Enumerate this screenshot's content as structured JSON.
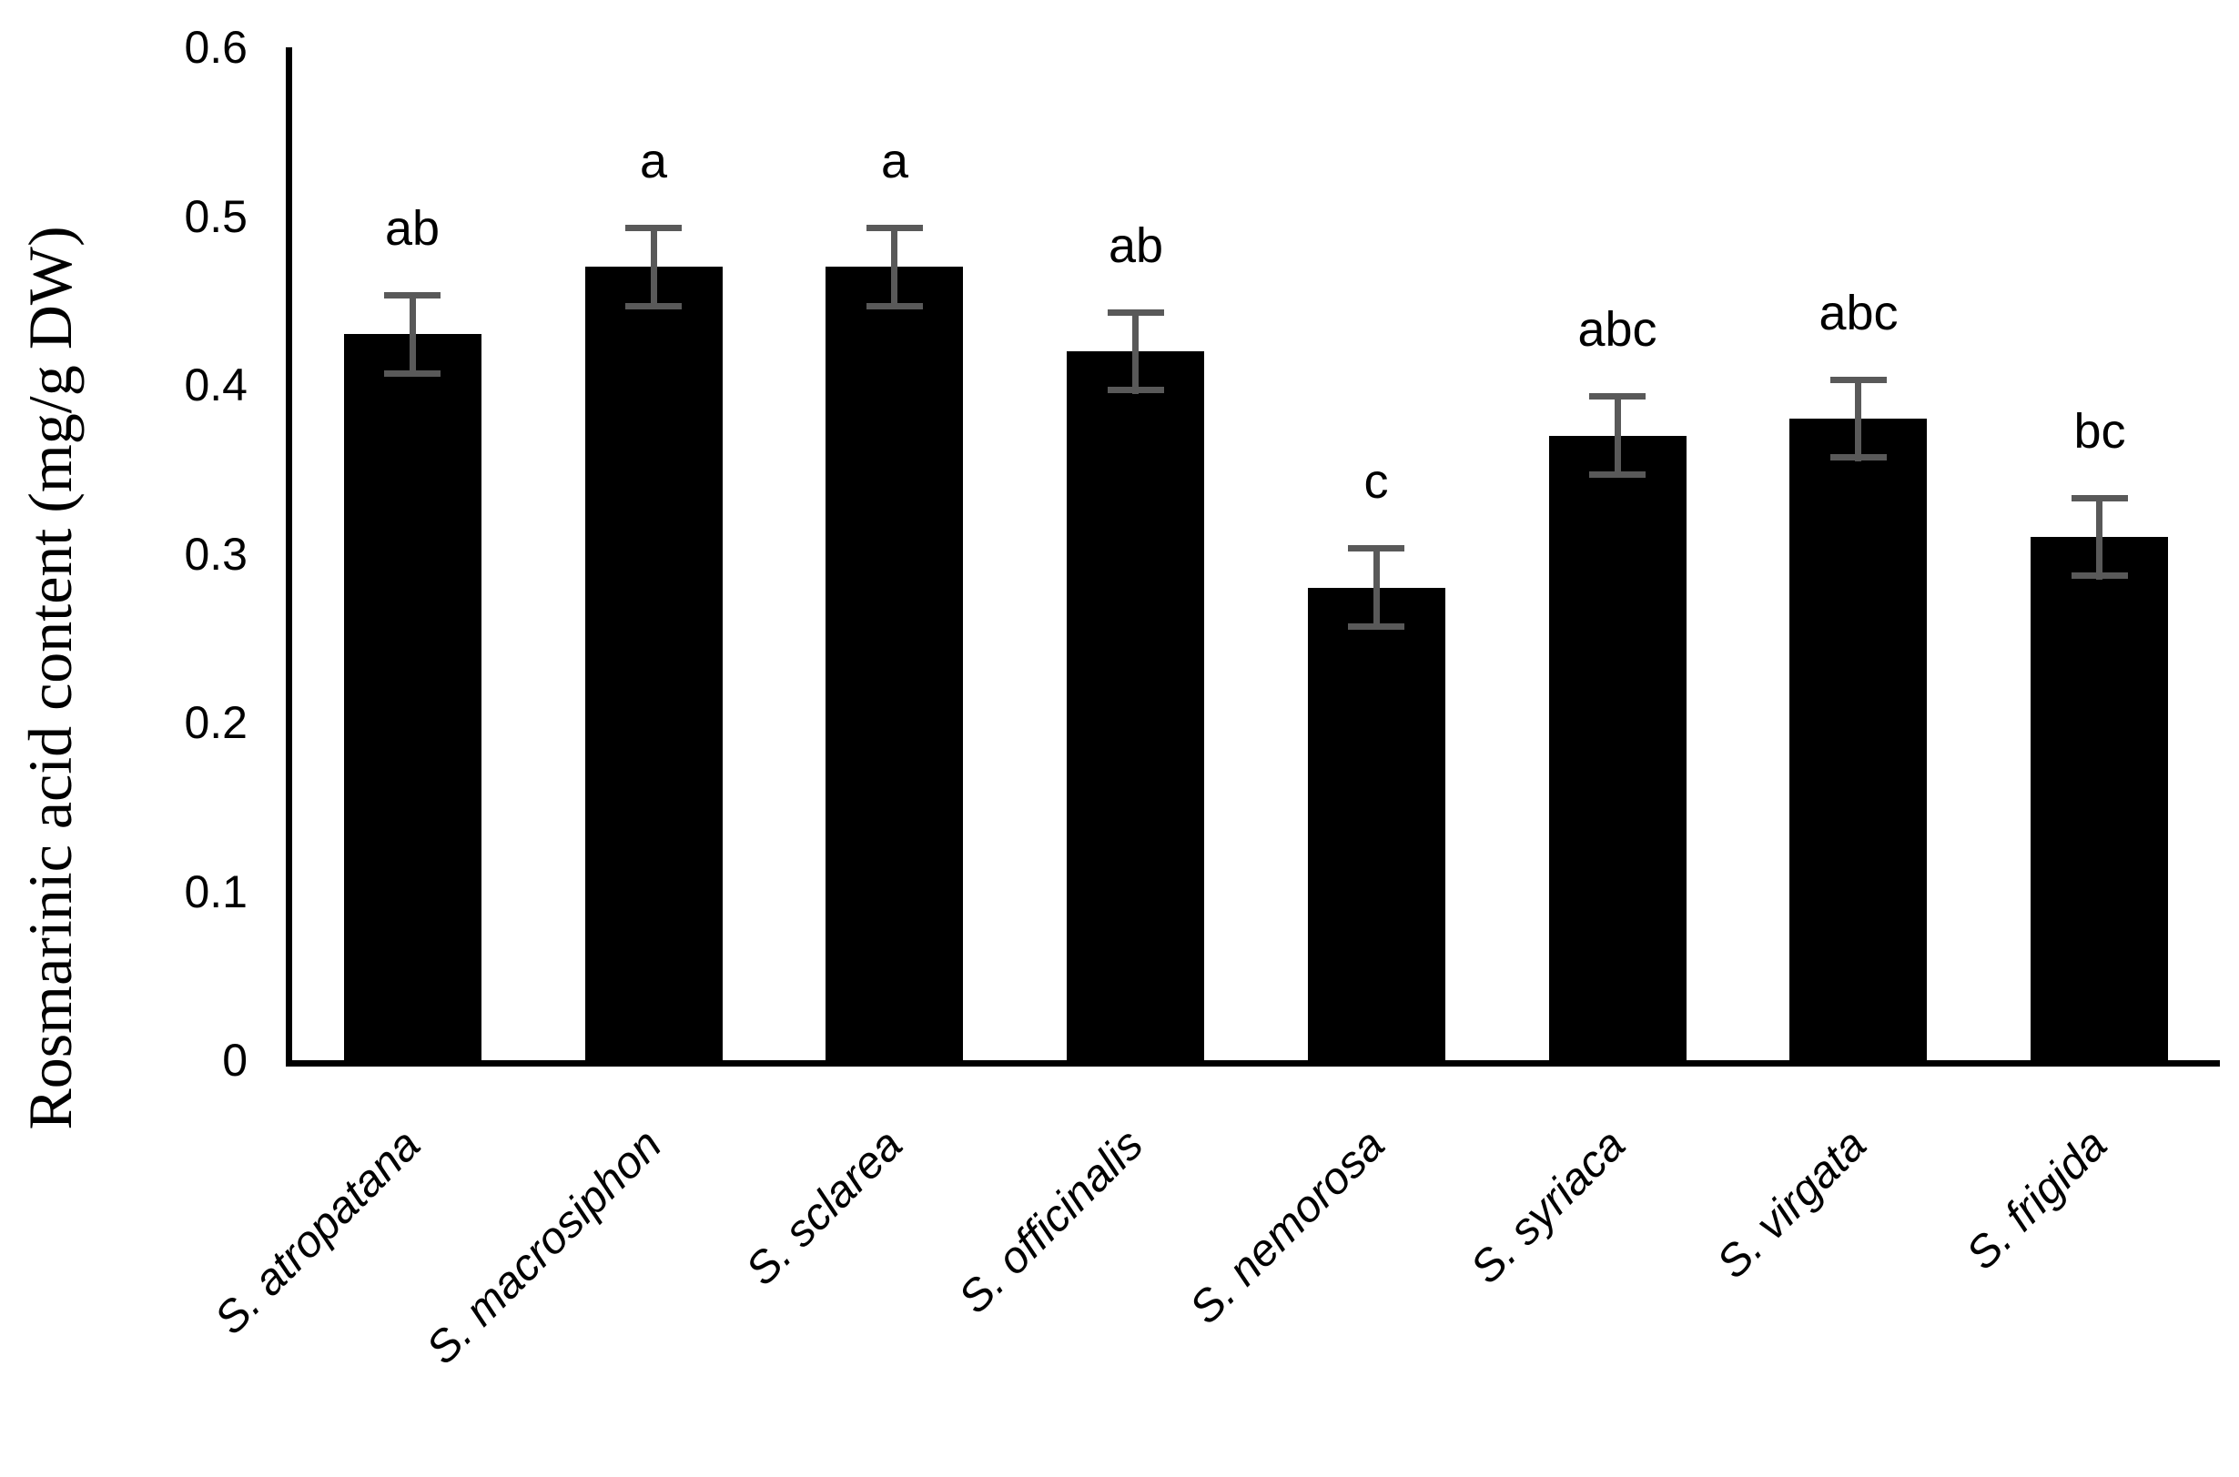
{
  "chart_data": {
    "type": "bar",
    "title": "",
    "ylabel": "Rosmarinic acid content (mg/g DW)",
    "xlabel": "",
    "ylim": [
      0,
      0.6
    ],
    "grid": false,
    "legend": false,
    "bar_color": "#000000",
    "error_bar_color": "#595959",
    "yticks": [
      {
        "value": 0,
        "label": "0"
      },
      {
        "value": 0.1,
        "label": "0.1"
      },
      {
        "value": 0.2,
        "label": "0.2"
      },
      {
        "value": 0.3,
        "label": "0.3"
      },
      {
        "value": 0.4,
        "label": "0.4"
      },
      {
        "value": 0.5,
        "label": "0.5"
      },
      {
        "value": 0.6,
        "label": "0.6"
      }
    ],
    "categories": [
      "S. atropatana",
      "S. macrosiphon",
      "S. sclarea",
      "S. officinalis",
      "S. nemorosa",
      "S. syriaca",
      "S. virgata",
      "S. frigida"
    ],
    "values": [
      0.43,
      0.47,
      0.47,
      0.42,
      0.28,
      0.37,
      0.38,
      0.31
    ],
    "errors": [
      0.025,
      0.025,
      0.025,
      0.025,
      0.025,
      0.025,
      0.025,
      0.025
    ],
    "sig_letters": [
      "ab",
      "a",
      "a",
      "ab",
      "c",
      "abc",
      "abc",
      "bc"
    ]
  }
}
